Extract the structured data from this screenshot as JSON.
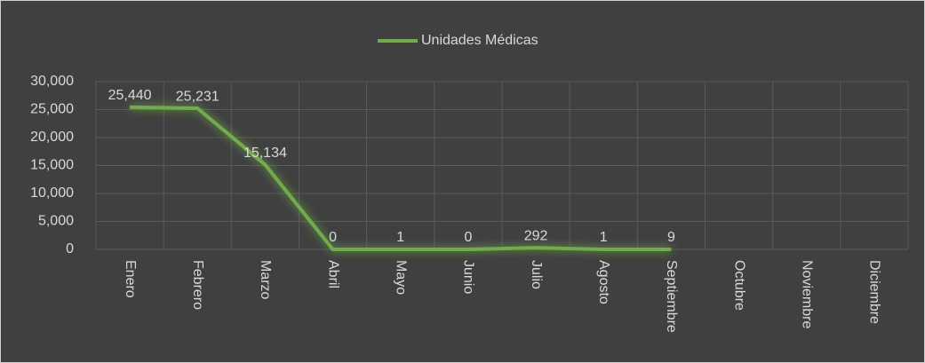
{
  "chart_data": {
    "type": "line",
    "categories": [
      "Enero",
      "Febrero",
      "Marzo",
      "Abril",
      "Mayo",
      "Junio",
      "Julio",
      "Agosto",
      "Septiembre",
      "Octubre",
      "Noviembre",
      "Diciembre"
    ],
    "series": [
      {
        "name": "Unidades Médicas",
        "color": "#70ad47",
        "values": [
          25440,
          25231,
          15134,
          0,
          1,
          0,
          292,
          1,
          9,
          null,
          null,
          null
        ],
        "value_labels": [
          "25,440",
          "25,231",
          "15,134",
          "0",
          "1",
          "0",
          "292",
          "1",
          "9",
          null,
          null,
          null
        ]
      }
    ],
    "ylim": [
      0,
      30000
    ],
    "yticks": [
      0,
      {
        "value": 5000,
        "label": "5,000"
      },
      {
        "value": 10000,
        "label": "10,000"
      },
      {
        "value": 15000,
        "label": "15,000"
      },
      {
        "value": 20000,
        "label": "20,000"
      },
      {
        "value": 25000,
        "label": "25,000"
      },
      {
        "value": 30000,
        "label": "30,000"
      }
    ],
    "grid": true,
    "legend": "top"
  }
}
